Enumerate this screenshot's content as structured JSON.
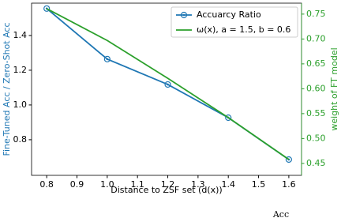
{
  "chart_data": {
    "type": "line",
    "x": [
      0.8,
      1.0,
      1.2,
      1.4,
      1.6
    ],
    "series": [
      {
        "name": "Accuarcy Ratio",
        "color": "#1f77b4",
        "values": [
          1.555,
          1.264,
          1.118,
          0.927,
          0.686
        ],
        "marker": "circle"
      },
      {
        "name": "ω(x), a = 1.5, b = 0.6",
        "color": "#2ca02c",
        "values": [
          0.761,
          0.697,
          0.621,
          0.542,
          0.458
        ],
        "axis": "y2"
      }
    ],
    "xlabel": "Distance to ZSF set (d(x))",
    "ylabel": "Fine-Tuned Acc / Zero-Shot Acc",
    "y2label": "weight of FT model",
    "xlim": [
      0.75,
      1.642
    ],
    "ylim": [
      0.595,
      1.586
    ],
    "y2lim": [
      0.426,
      0.772
    ],
    "xticks": [
      0.8,
      0.9,
      {
        "value": 1,
        "label": "1.0"
      },
      1.1,
      1.2,
      1.3,
      1.4,
      1.5,
      1.6
    ],
    "yticks": [
      0.8,
      {
        "value": 1,
        "label": "1.0"
      },
      1.2,
      1.4
    ],
    "y2ticks": [
      0.45,
      {
        "value": 0.5,
        "label": "0.50"
      },
      0.55,
      {
        "value": 0.6,
        "label": "0.60"
      },
      0.65,
      {
        "value": 0.7,
        "label": "0.70"
      },
      0.75
    ],
    "legend": "upper-right",
    "annotation": "Acc"
  }
}
